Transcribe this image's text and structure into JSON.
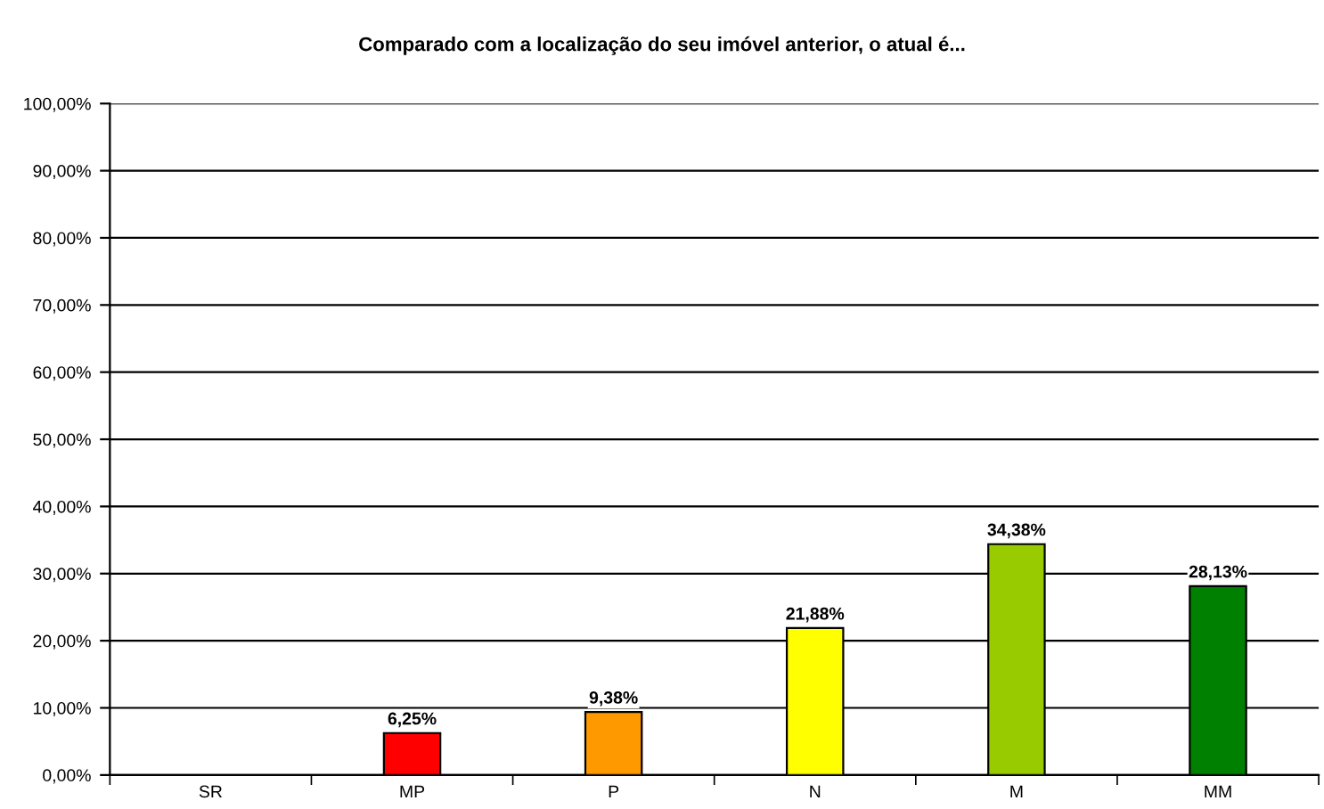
{
  "chart_data": {
    "type": "bar",
    "title": "Comparado com a localização do seu imóvel anterior, o atual é...",
    "categories": [
      "SR",
      "MP",
      "P",
      "N",
      "M",
      "MM"
    ],
    "values": [
      null,
      6.25,
      9.38,
      21.88,
      34.38,
      28.13
    ],
    "value_labels": [
      null,
      "6,25%",
      "9,38%",
      "21,88%",
      "34,38%",
      "28,13%"
    ],
    "colors": [
      null,
      "#ff0000",
      "#ff9900",
      "#ffff00",
      "#99cc00",
      "#008000"
    ],
    "ylim": [
      0,
      100
    ],
    "yticks": [
      {
        "value": 0,
        "label": "0,00%"
      },
      {
        "value": 10,
        "label": "10,00%"
      },
      {
        "value": 20,
        "label": "20,00%"
      },
      {
        "value": 30,
        "label": "30,00%"
      },
      {
        "value": 40,
        "label": "40,00%"
      },
      {
        "value": 50,
        "label": "50,00%"
      },
      {
        "value": 60,
        "label": "60,00%"
      },
      {
        "value": 70,
        "label": "70,00%"
      },
      {
        "value": 80,
        "label": "80,00%"
      },
      {
        "value": 90,
        "label": "90,00%"
      },
      {
        "value": 100,
        "label": "100,00%"
      }
    ],
    "grid": "y",
    "legend": false
  }
}
